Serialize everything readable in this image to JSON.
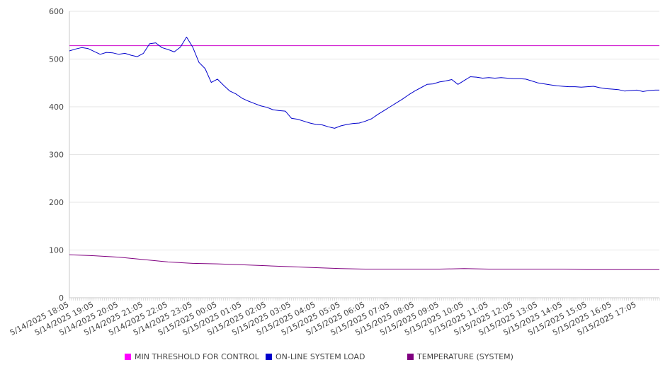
{
  "chart_data": {
    "type": "line",
    "ylim": [
      0,
      600
    ],
    "yticks": [
      0,
      100,
      200,
      300,
      400,
      500,
      600
    ],
    "grid": true,
    "legend_position": "bottom",
    "x_tick_labels": [
      "5/14/2025 18:05",
      "5/14/2025 19:05",
      "5/14/2025 20:05",
      "5/14/2025 21:05",
      "5/14/2025 22:05",
      "5/14/2025 23:05",
      "5/15/2025 00:05",
      "5/15/2025 01:05",
      "5/15/2025 02:05",
      "5/15/2025 03:05",
      "5/15/2025 04:05",
      "5/15/2025 05:05",
      "5/15/2025 06:05",
      "5/15/2025 07:05",
      "5/15/2025 08:05",
      "5/15/2025 09:05",
      "5/15/2025 10:05",
      "5/15/2025 11:05",
      "5/15/2025 12:05",
      "5/15/2025 13:05",
      "5/15/2025 14:05",
      "5/15/2025 15:05",
      "5/15/2025 16:05",
      "5/15/2025 17:05"
    ],
    "series": [
      {
        "name": "MIN THRESHOLD FOR CONTROL",
        "color": "#cc00cc",
        "points": [
          [
            "5/14/2025 18:05",
            528
          ],
          [
            "5/15/2025 18:00",
            528
          ]
        ]
      },
      {
        "name": "ON-LINE SYSTEM LOAD",
        "color": "#0000cc",
        "points": [
          [
            "5/14/2025 18:05",
            517
          ],
          [
            "5/14/2025 18:20",
            521
          ],
          [
            "5/14/2025 18:35",
            524
          ],
          [
            "5/14/2025 18:50",
            522
          ],
          [
            "5/14/2025 19:05",
            516
          ],
          [
            "5/14/2025 19:20",
            510
          ],
          [
            "5/14/2025 19:35",
            514
          ],
          [
            "5/14/2025 19:50",
            513
          ],
          [
            "5/14/2025 20:05",
            510
          ],
          [
            "5/14/2025 20:20",
            512
          ],
          [
            "5/14/2025 20:35",
            508
          ],
          [
            "5/14/2025 20:50",
            505
          ],
          [
            "5/14/2025 21:05",
            512
          ],
          [
            "5/14/2025 21:20",
            532
          ],
          [
            "5/14/2025 21:35",
            534
          ],
          [
            "5/14/2025 21:50",
            524
          ],
          [
            "5/14/2025 22:05",
            520
          ],
          [
            "5/14/2025 22:20",
            515
          ],
          [
            "5/14/2025 22:35",
            525
          ],
          [
            "5/14/2025 22:50",
            546
          ],
          [
            "5/14/2025 23:05",
            525
          ],
          [
            "5/14/2025 23:20",
            493
          ],
          [
            "5/14/2025 23:35",
            480
          ],
          [
            "5/14/2025 23:50",
            451
          ],
          [
            "5/15/2025 00:05",
            458
          ],
          [
            "5/15/2025 00:20",
            445
          ],
          [
            "5/15/2025 00:35",
            433
          ],
          [
            "5/15/2025 00:50",
            427
          ],
          [
            "5/15/2025 01:05",
            418
          ],
          [
            "5/15/2025 01:20",
            412
          ],
          [
            "5/15/2025 01:35",
            407
          ],
          [
            "5/15/2025 01:50",
            402
          ],
          [
            "5/15/2025 02:05",
            399
          ],
          [
            "5/15/2025 02:20",
            394
          ],
          [
            "5/15/2025 02:35",
            392
          ],
          [
            "5/15/2025 02:50",
            391
          ],
          [
            "5/15/2025 03:05",
            376
          ],
          [
            "5/15/2025 03:20",
            374
          ],
          [
            "5/15/2025 03:35",
            370
          ],
          [
            "5/15/2025 03:50",
            366
          ],
          [
            "5/15/2025 04:05",
            363
          ],
          [
            "5/15/2025 04:20",
            362
          ],
          [
            "5/15/2025 04:35",
            358
          ],
          [
            "5/15/2025 04:50",
            355
          ],
          [
            "5/15/2025 05:05",
            360
          ],
          [
            "5/15/2025 05:20",
            363
          ],
          [
            "5/15/2025 05:35",
            365
          ],
          [
            "5/15/2025 05:50",
            366
          ],
          [
            "5/15/2025 06:05",
            370
          ],
          [
            "5/15/2025 06:20",
            375
          ],
          [
            "5/15/2025 06:35",
            384
          ],
          [
            "5/15/2025 06:50",
            392
          ],
          [
            "5/15/2025 07:05",
            400
          ],
          [
            "5/15/2025 07:20",
            408
          ],
          [
            "5/15/2025 07:35",
            416
          ],
          [
            "5/15/2025 07:50",
            425
          ],
          [
            "5/15/2025 08:05",
            433
          ],
          [
            "5/15/2025 08:20",
            440
          ],
          [
            "5/15/2025 08:35",
            447
          ],
          [
            "5/15/2025 08:50",
            448
          ],
          [
            "5/15/2025 09:05",
            452
          ],
          [
            "5/15/2025 09:20",
            454
          ],
          [
            "5/15/2025 09:35",
            457
          ],
          [
            "5/15/2025 09:50",
            447
          ],
          [
            "5/15/2025 10:05",
            455
          ],
          [
            "5/15/2025 10:20",
            463
          ],
          [
            "5/15/2025 10:35",
            462
          ],
          [
            "5/15/2025 10:50",
            460
          ],
          [
            "5/15/2025 11:05",
            461
          ],
          [
            "5/15/2025 11:20",
            460
          ],
          [
            "5/15/2025 11:35",
            461
          ],
          [
            "5/15/2025 11:50",
            460
          ],
          [
            "5/15/2025 12:05",
            459
          ],
          [
            "5/15/2025 12:20",
            459
          ],
          [
            "5/15/2025 12:35",
            458
          ],
          [
            "5/15/2025 12:50",
            454
          ],
          [
            "5/15/2025 13:05",
            450
          ],
          [
            "5/15/2025 13:20",
            448
          ],
          [
            "5/15/2025 13:35",
            446
          ],
          [
            "5/15/2025 13:50",
            444
          ],
          [
            "5/15/2025 14:05",
            443
          ],
          [
            "5/15/2025 14:20",
            442
          ],
          [
            "5/15/2025 14:35",
            442
          ],
          [
            "5/15/2025 14:50",
            441
          ],
          [
            "5/15/2025 15:05",
            442
          ],
          [
            "5/15/2025 15:20",
            443
          ],
          [
            "5/15/2025 15:35",
            440
          ],
          [
            "5/15/2025 15:50",
            438
          ],
          [
            "5/15/2025 16:05",
            437
          ],
          [
            "5/15/2025 16:20",
            436
          ],
          [
            "5/15/2025 16:35",
            433
          ],
          [
            "5/15/2025 16:50",
            434
          ],
          [
            "5/15/2025 17:05",
            435
          ],
          [
            "5/15/2025 17:20",
            432
          ],
          [
            "5/15/2025 17:35",
            434
          ],
          [
            "5/15/2025 17:50",
            435
          ],
          [
            "5/15/2025 18:00",
            435
          ]
        ]
      },
      {
        "name": "TEMPERATURE (SYSTEM)",
        "color": "#800080",
        "points": [
          [
            "5/14/2025 18:05",
            90
          ],
          [
            "5/14/2025 19:05",
            88
          ],
          [
            "5/14/2025 20:05",
            85
          ],
          [
            "5/14/2025 21:05",
            80
          ],
          [
            "5/14/2025 22:05",
            75
          ],
          [
            "5/14/2025 23:05",
            72
          ],
          [
            "5/15/2025 00:05",
            71
          ],
          [
            "5/15/2025 01:05",
            69
          ],
          [
            "5/15/2025 02:05",
            67
          ],
          [
            "5/15/2025 03:05",
            65
          ],
          [
            "5/15/2025 04:05",
            63
          ],
          [
            "5/15/2025 05:05",
            61
          ],
          [
            "5/15/2025 06:05",
            60
          ],
          [
            "5/15/2025 07:05",
            60
          ],
          [
            "5/15/2025 08:05",
            60
          ],
          [
            "5/15/2025 09:05",
            60
          ],
          [
            "5/15/2025 10:05",
            61
          ],
          [
            "5/15/2025 11:05",
            60
          ],
          [
            "5/15/2025 12:05",
            60
          ],
          [
            "5/15/2025 13:05",
            60
          ],
          [
            "5/15/2025 14:05",
            60
          ],
          [
            "5/15/2025 15:05",
            59
          ],
          [
            "5/15/2025 16:05",
            59
          ],
          [
            "5/15/2025 17:05",
            59
          ],
          [
            "5/15/2025 18:00",
            59
          ]
        ]
      }
    ]
  },
  "legend": [
    {
      "label": "MIN THRESHOLD FOR CONTROL",
      "color": "#ff00ff"
    },
    {
      "label": "ON-LINE SYSTEM LOAD",
      "color": "#0000cc"
    },
    {
      "label": "TEMPERATURE (SYSTEM)",
      "color": "#800080"
    }
  ]
}
